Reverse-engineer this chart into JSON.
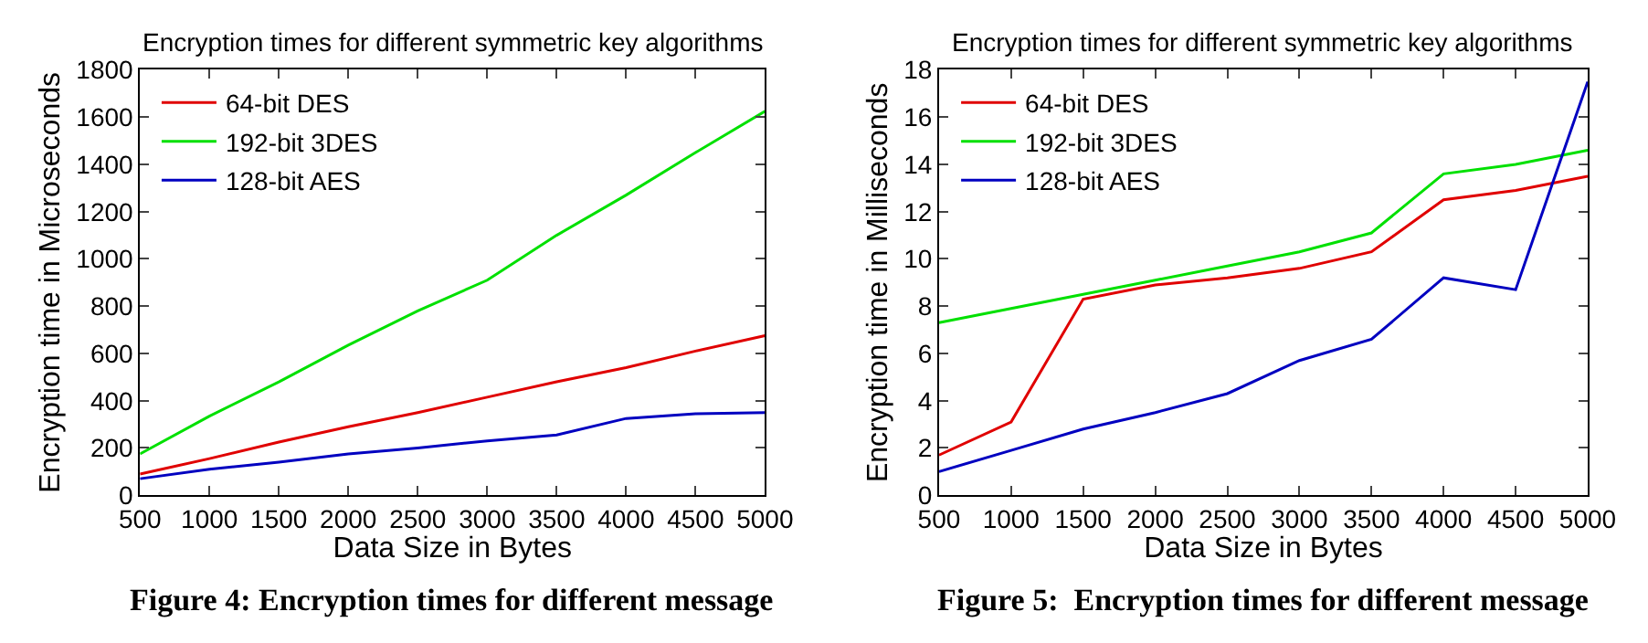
{
  "chart_data": [
    {
      "type": "line",
      "title": "Encryption times for different symmetric key algorithms",
      "xlabel": "Data Size in Bytes",
      "ylabel": "Encryption time in Microseconds",
      "x": [
        500,
        1000,
        1500,
        2000,
        2500,
        3000,
        3500,
        4000,
        4500,
        5000
      ],
      "series": [
        {
          "name": "64-bit DES",
          "color": "#e00000",
          "values": [
            90,
            155,
            225,
            290,
            350,
            415,
            480,
            540,
            610,
            675
          ]
        },
        {
          "name": "192-bit 3DES",
          "color": "#00e000",
          "values": [
            175,
            335,
            480,
            635,
            780,
            910,
            1100,
            1270,
            1450,
            1625
          ]
        },
        {
          "name": "128-bit AES",
          "color": "#0000c0",
          "values": [
            70,
            110,
            140,
            175,
            200,
            230,
            255,
            325,
            345,
            350
          ]
        }
      ],
      "xlim": [
        500,
        5000
      ],
      "xticks": [
        500,
        1000,
        1500,
        2000,
        2500,
        3000,
        3500,
        4000,
        4500,
        5000
      ],
      "ylim": [
        0,
        1800
      ],
      "yticks": [
        0,
        200,
        400,
        600,
        800,
        1000,
        1200,
        1400,
        1600,
        1800
      ],
      "legend": "top left",
      "marker": "none",
      "line_style": "solid",
      "annotations": [
        "Figure 4: Encryption times for different message"
      ]
    },
    {
      "type": "line",
      "title": "Encryption times for different symmetric key algorithms",
      "xlabel": "Data Size in Bytes",
      "ylabel": "Encryption time in Milliseconds",
      "x": [
        500,
        1000,
        1500,
        2000,
        2500,
        3000,
        3500,
        4000,
        4500,
        5000
      ],
      "series": [
        {
          "name": "64-bit DES",
          "color": "#e00000",
          "values": [
            1.7,
            3.1,
            8.3,
            8.9,
            9.2,
            9.6,
            10.3,
            12.5,
            12.9,
            13.5
          ]
        },
        {
          "name": "192-bit 3DES",
          "color": "#00e000",
          "values": [
            7.3,
            7.9,
            8.5,
            9.1,
            9.7,
            10.3,
            11.1,
            13.6,
            14.0,
            14.6
          ]
        },
        {
          "name": "128-bit AES",
          "color": "#0000c0",
          "values": [
            1.0,
            1.9,
            2.8,
            3.5,
            4.3,
            5.7,
            6.6,
            9.2,
            8.7,
            17.5
          ]
        }
      ],
      "xlim": [
        500,
        5000
      ],
      "xticks": [
        500,
        1000,
        1500,
        2000,
        2500,
        3000,
        3500,
        4000,
        4500,
        5000
      ],
      "ylim": [
        0,
        18
      ],
      "yticks": [
        0,
        2,
        4,
        6,
        8,
        10,
        12,
        14,
        16,
        18
      ],
      "legend": "top left",
      "marker": "none",
      "line_style": "solid",
      "annotations": [
        "Figure 5:  Encryption times for different message"
      ]
    }
  ]
}
